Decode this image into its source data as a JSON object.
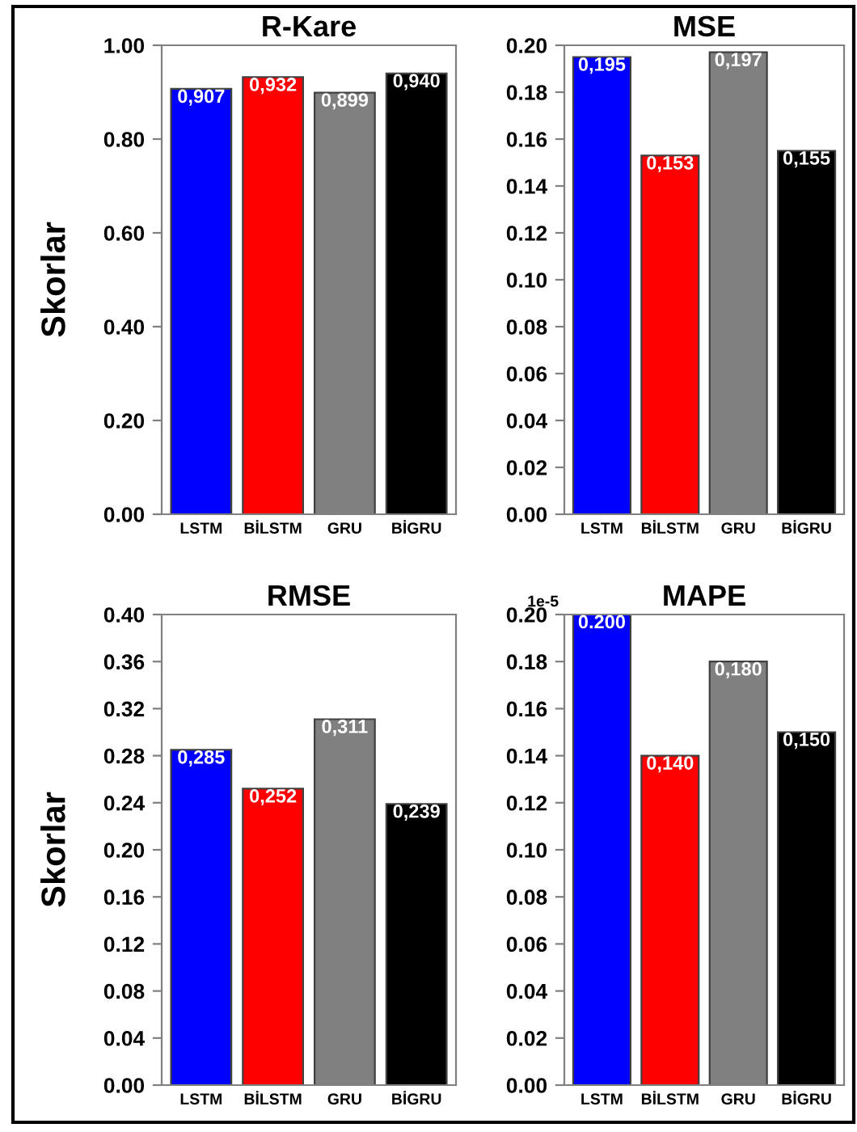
{
  "chart_data": [
    {
      "type": "bar",
      "title": "R-Kare",
      "ylabel": "Skorlar",
      "categories": [
        "LSTM",
        "BİLSTM",
        "GRU",
        "BİGRU"
      ],
      "colors": [
        "#0000ff",
        "#ff0000",
        "#808080",
        "#000000"
      ],
      "values": [
        0.907,
        0.932,
        0.899,
        0.94
      ],
      "value_labels": [
        "0,907",
        "0,932",
        "0,899",
        "0,940"
      ],
      "ylim": [
        0,
        1
      ],
      "yticks": [
        {
          "value": 0,
          "label": "0.00"
        },
        {
          "value": 0.2,
          "label": "0.20"
        },
        {
          "value": 0.4,
          "label": "0.40"
        },
        {
          "value": 0.6,
          "label": "0.60"
        },
        {
          "value": 0.8,
          "label": "0.80"
        },
        {
          "value": 1,
          "label": "1.00"
        }
      ],
      "grid": false,
      "legend": false
    },
    {
      "type": "bar",
      "title": "MSE",
      "categories": [
        "LSTM",
        "BİLSTM",
        "GRU",
        "BİGRU"
      ],
      "colors": [
        "#0000ff",
        "#ff0000",
        "#808080",
        "#000000"
      ],
      "values": [
        0.195,
        0.153,
        0.197,
        0.155
      ],
      "value_labels": [
        "0,195",
        "0,153",
        "0,197",
        "0,155"
      ],
      "ylim": [
        0,
        0.2
      ],
      "yticks": [
        {
          "value": 0,
          "label": "0.00"
        },
        {
          "value": 0.02,
          "label": "0.02"
        },
        {
          "value": 0.04,
          "label": "0.04"
        },
        {
          "value": 0.06,
          "label": "0.06"
        },
        {
          "value": 0.08,
          "label": "0.08"
        },
        {
          "value": 0.1,
          "label": "0.10"
        },
        {
          "value": 0.12,
          "label": "0.12"
        },
        {
          "value": 0.14,
          "label": "0.14"
        },
        {
          "value": 0.16,
          "label": "0.16"
        },
        {
          "value": 0.18,
          "label": "0.18"
        },
        {
          "value": 0.2,
          "label": "0.20"
        }
      ],
      "grid": false,
      "legend": false
    },
    {
      "type": "bar",
      "title": "RMSE",
      "ylabel": "Skorlar",
      "categories": [
        "LSTM",
        "BİLSTM",
        "GRU",
        "BİGRU"
      ],
      "colors": [
        "#0000ff",
        "#ff0000",
        "#808080",
        "#000000"
      ],
      "values": [
        0.285,
        0.252,
        0.311,
        0.239
      ],
      "value_labels": [
        "0,285",
        "0,252",
        "0,311",
        "0,239"
      ],
      "ylim": [
        0,
        0.4
      ],
      "yticks": [
        {
          "value": 0,
          "label": "0.00"
        },
        {
          "value": 0.04,
          "label": "0.04"
        },
        {
          "value": 0.08,
          "label": "0.08"
        },
        {
          "value": 0.12,
          "label": "0.12"
        },
        {
          "value": 0.16,
          "label": "0.16"
        },
        {
          "value": 0.2,
          "label": "0.20"
        },
        {
          "value": 0.24,
          "label": "0.24"
        },
        {
          "value": 0.28,
          "label": "0.28"
        },
        {
          "value": 0.32,
          "label": "0.32"
        },
        {
          "value": 0.36,
          "label": "0.36"
        },
        {
          "value": 0.4,
          "label": "0.40"
        }
      ],
      "grid": false,
      "legend": false
    },
    {
      "type": "bar",
      "title": "MAPE",
      "annotations": [
        "1e-5"
      ],
      "categories": [
        "LSTM",
        "BİLSTM",
        "GRU",
        "BİGRU"
      ],
      "colors": [
        "#0000ff",
        "#ff0000",
        "#808080",
        "#000000"
      ],
      "values": [
        0.2,
        0.14,
        0.18,
        0.15
      ],
      "value_labels": [
        "0.200",
        "0,140",
        "0,180",
        "0,150"
      ],
      "ylim": [
        0,
        0.2
      ],
      "yticks": [
        {
          "value": 0,
          "label": "0.00"
        },
        {
          "value": 0.02,
          "label": "0.02"
        },
        {
          "value": 0.04,
          "label": "0.04"
        },
        {
          "value": 0.06,
          "label": "0.06"
        },
        {
          "value": 0.08,
          "label": "0.08"
        },
        {
          "value": 0.1,
          "label": "0.10"
        },
        {
          "value": 0.12,
          "label": "0.12"
        },
        {
          "value": 0.14,
          "label": "0.14"
        },
        {
          "value": 0.16,
          "label": "0.16"
        },
        {
          "value": 0.18,
          "label": "0.18"
        },
        {
          "value": 0.2,
          "label": "0.20"
        }
      ],
      "grid": false,
      "legend": false
    }
  ]
}
